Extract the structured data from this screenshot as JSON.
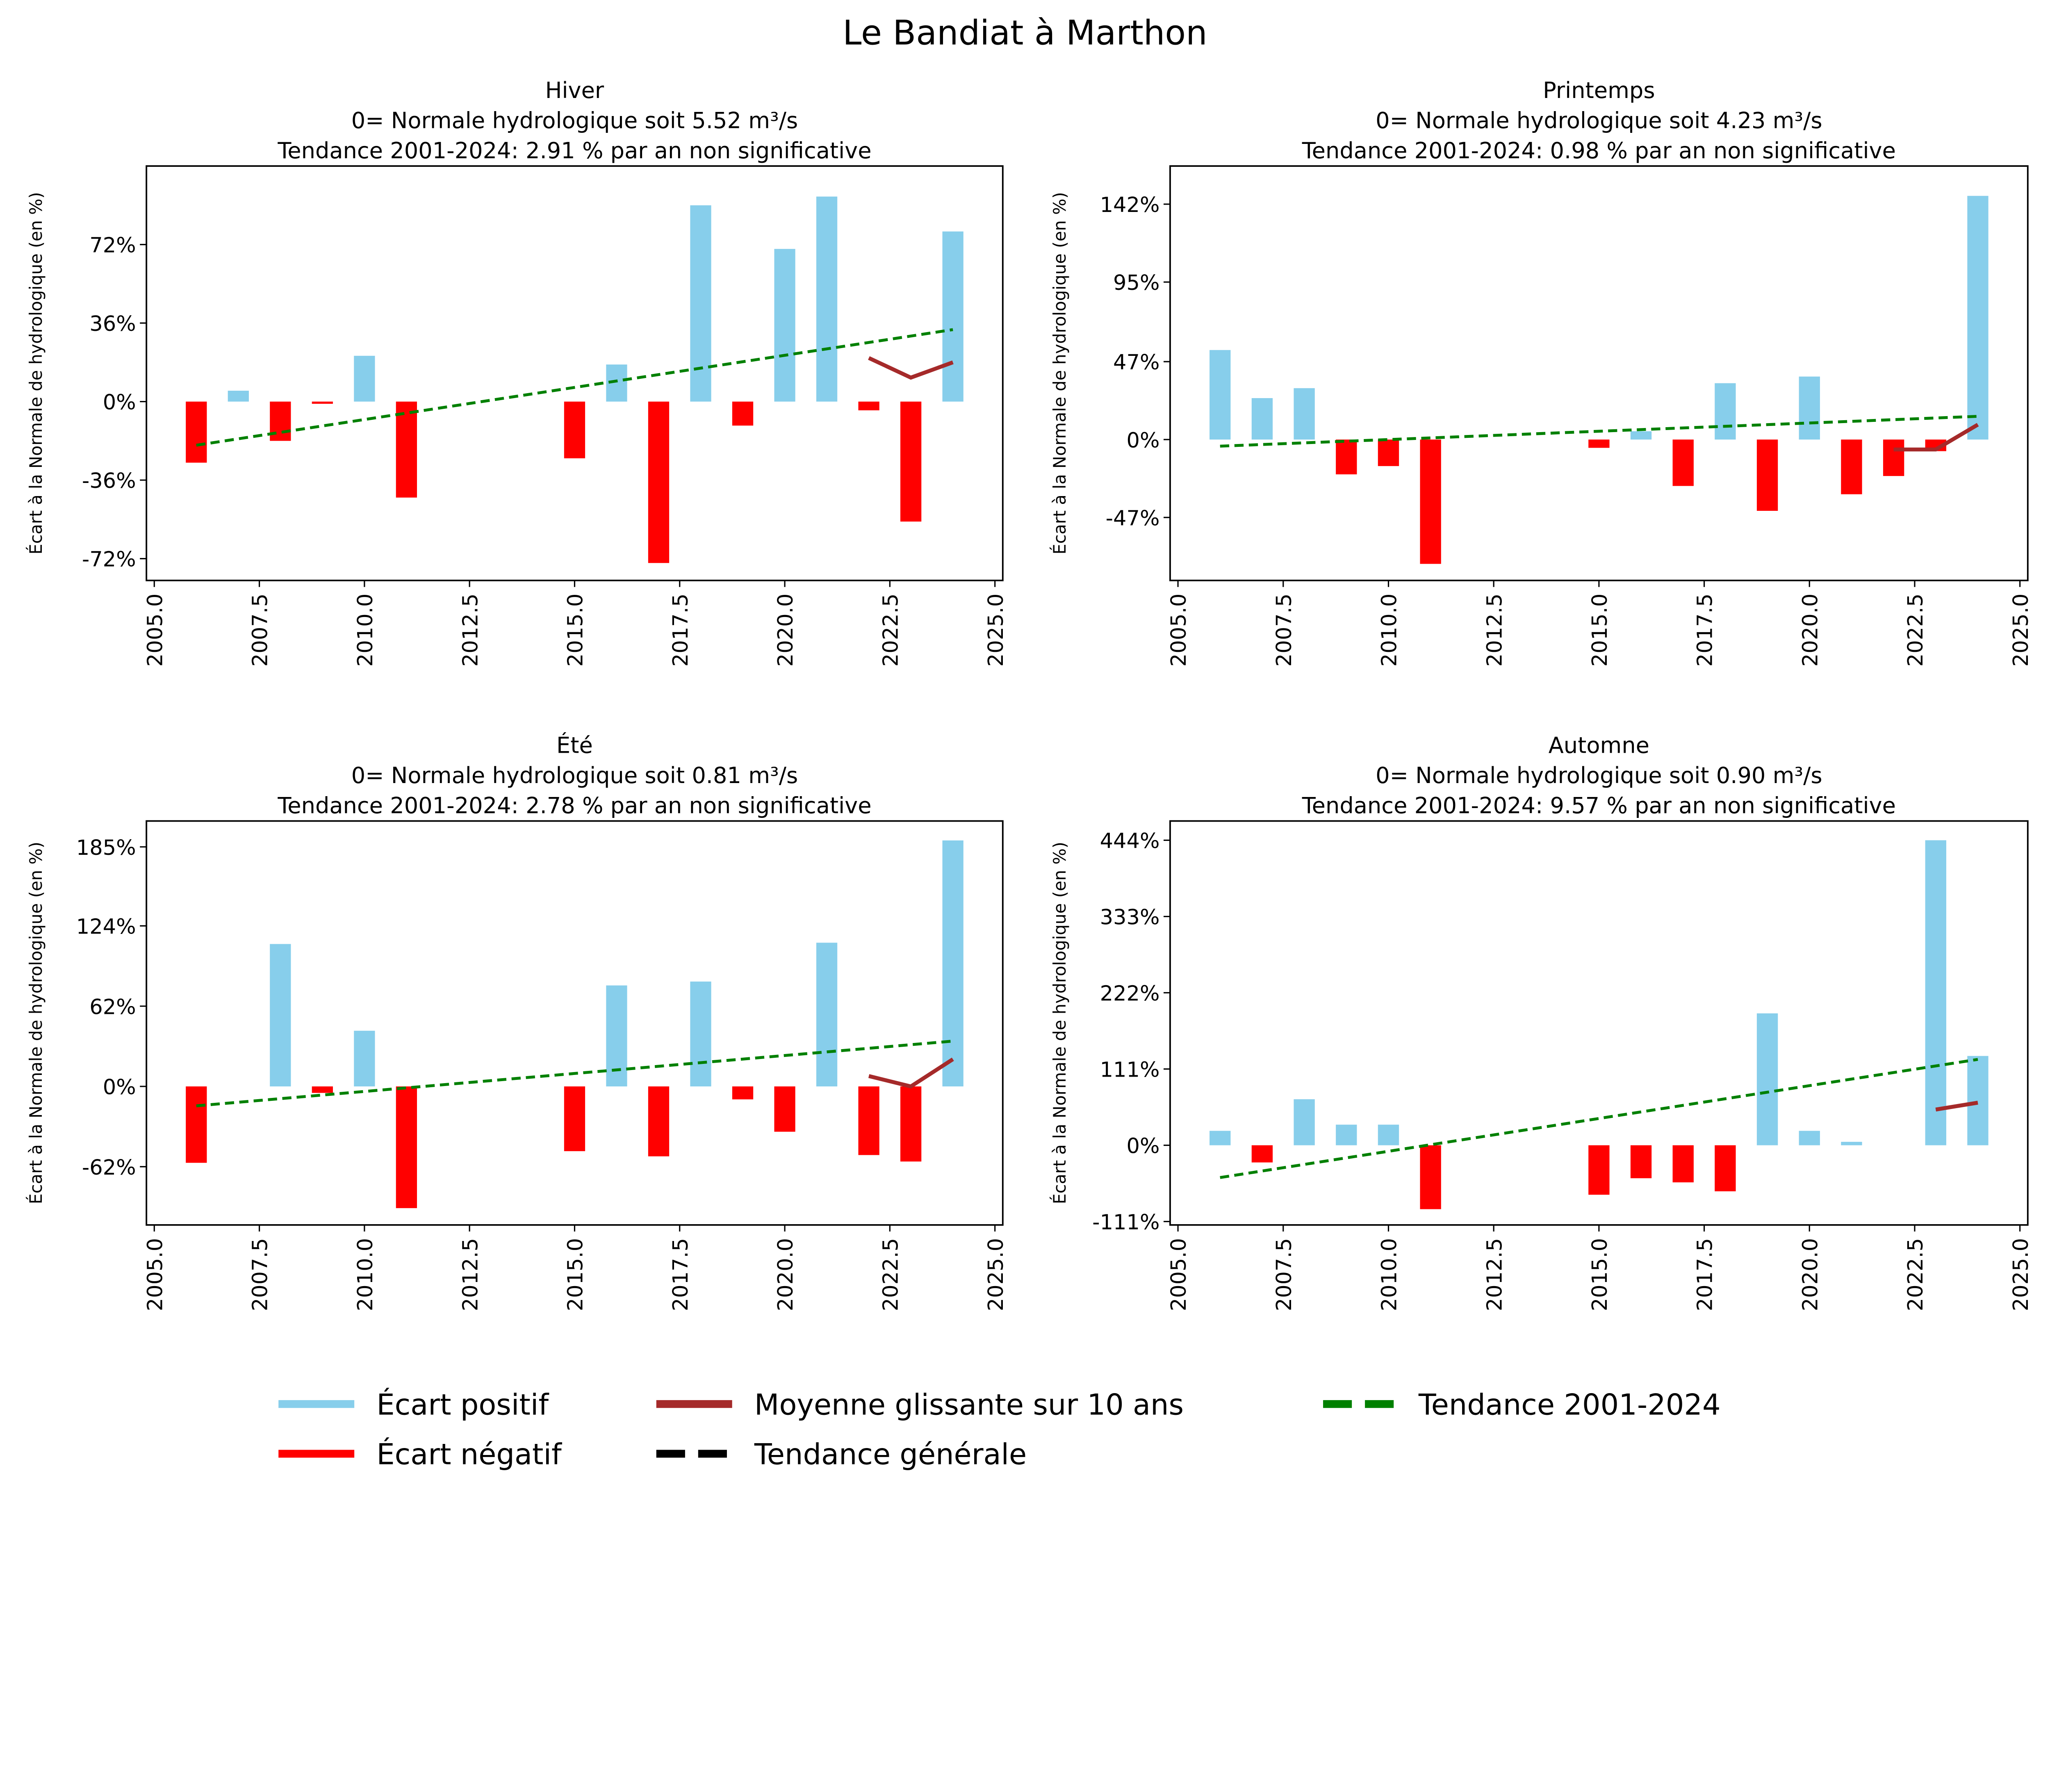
{
  "title": "Le Bandiat à Marthon",
  "ylabel": "Écart à la Normale de hydrologique (en %)",
  "colors": {
    "positive": "#87CEEB",
    "negative": "#FF0000",
    "moving_avg": "#A52A2A",
    "trend": "#008000",
    "general": "#000000"
  },
  "legend": [
    "Écart positif",
    "Écart négatif",
    "Moyenne glissante sur 10 ans",
    "Tendance générale",
    "Tendance 2001-2024"
  ],
  "chart_data": [
    {
      "type": "bar",
      "title": "Hiver",
      "subtitle1": "0= Normale hydrologique soit 5.52 m³/s",
      "subtitle2": "Tendance 2001-2024: 2.91 % par an non significative",
      "xlim": [
        2005,
        2025
      ],
      "ylim": [
        -82,
        108
      ],
      "yticks": [
        -72,
        -36,
        0,
        36,
        72
      ],
      "ytick_labels": [
        "-72%",
        "-36%",
        "0%",
        "36%",
        "72%"
      ],
      "xticks": [
        "2005.0",
        "2007.5",
        "2010.0",
        "2012.5",
        "2015.0",
        "2017.5",
        "2020.0",
        "2022.5",
        "2025.0"
      ],
      "x": [
        2006,
        2007,
        2008,
        2009,
        2010,
        2011,
        2015,
        2016,
        2017,
        2018,
        2019,
        2020,
        2021,
        2022,
        2023,
        2024
      ],
      "values": [
        -28,
        5,
        -18,
        -1,
        21,
        -44,
        -26,
        17,
        -74,
        90,
        -11,
        70,
        94,
        -4,
        -55,
        78
      ],
      "moving_avg": {
        "x": [
          2022,
          2023,
          2024
        ],
        "y": [
          20,
          11,
          18
        ]
      },
      "trend": {
        "x": [
          2006,
          2024
        ],
        "y": [
          -20,
          33
        ]
      }
    },
    {
      "type": "bar",
      "title": "Printemps",
      "subtitle1": "0= Normale hydrologique soit 4.23 m³/s",
      "subtitle2": "Tendance 2001-2024: 0.98 % par an non significative",
      "xlim": [
        2005,
        2025
      ],
      "ylim": [
        -85,
        165
      ],
      "yticks": [
        -47,
        0,
        47,
        95,
        142
      ],
      "ytick_labels": [
        "-47%",
        "0%",
        "47%",
        "95%",
        "142%"
      ],
      "xticks": [
        "2005.0",
        "2007.5",
        "2010.0",
        "2012.5",
        "2015.0",
        "2017.5",
        "2020.0",
        "2022.5",
        "2025.0"
      ],
      "x": [
        2006,
        2007,
        2008,
        2009,
        2010,
        2011,
        2015,
        2016,
        2017,
        2018,
        2019,
        2020,
        2021,
        2022,
        2023,
        2024
      ],
      "values": [
        54,
        25,
        31,
        -21,
        -16,
        -75,
        -5,
        5,
        -28,
        34,
        -43,
        38,
        -33,
        -22,
        -7,
        147
      ],
      "moving_avg": {
        "x": [
          2022,
          2023,
          2024
        ],
        "y": [
          -6,
          -6,
          9
        ]
      },
      "trend": {
        "x": [
          2006,
          2024
        ],
        "y": [
          -4,
          14
        ]
      }
    },
    {
      "type": "bar",
      "title": "Été",
      "subtitle1": "0= Normale hydrologique soit 0.81 m³/s",
      "subtitle2": "Tendance 2001-2024: 2.78 % par an non significative",
      "xlim": [
        2005,
        2025
      ],
      "ylim": [
        -107,
        205
      ],
      "yticks": [
        -62,
        0,
        62,
        124,
        185
      ],
      "ytick_labels": [
        "-62%",
        "0%",
        "62%",
        "124%",
        "185%"
      ],
      "xticks": [
        "2005.0",
        "2007.5",
        "2010.0",
        "2012.5",
        "2015.0",
        "2017.5",
        "2020.0",
        "2022.5",
        "2025.0"
      ],
      "x": [
        2006,
        2008,
        2009,
        2010,
        2011,
        2015,
        2016,
        2017,
        2018,
        2019,
        2020,
        2021,
        2022,
        2023,
        2024
      ],
      "values": [
        -59,
        110,
        -5,
        43,
        -94,
        -50,
        78,
        -54,
        81,
        -10,
        -35,
        111,
        -53,
        -58,
        190
      ],
      "moving_avg": {
        "x": [
          2022,
          2023,
          2024
        ],
        "y": [
          8,
          0,
          21
        ]
      },
      "trend": {
        "x": [
          2006,
          2024
        ],
        "y": [
          -15,
          35
        ]
      }
    },
    {
      "type": "bar",
      "title": "Automne",
      "subtitle1": "0= Normale hydrologique soit 0.90 m³/s",
      "subtitle2": "Tendance 2001-2024: 9.57 % par an non significative",
      "xlim": [
        2005,
        2025
      ],
      "ylim": [
        -116,
        472
      ],
      "yticks": [
        -111,
        0,
        111,
        222,
        333,
        444
      ],
      "ytick_labels": [
        "-111%",
        "0%",
        "111%",
        "222%",
        "333%",
        "444%"
      ],
      "xticks": [
        "2005.0",
        "2007.5",
        "2010.0",
        "2012.5",
        "2015.0",
        "2017.5",
        "2020.0",
        "2022.5",
        "2025.0"
      ],
      "x": [
        2006,
        2007,
        2008,
        2009,
        2010,
        2011,
        2015,
        2016,
        2017,
        2018,
        2019,
        2020,
        2021,
        2023,
        2024
      ],
      "values": [
        21,
        -25,
        67,
        30,
        30,
        -93,
        -72,
        -48,
        -54,
        -67,
        192,
        21,
        5,
        444,
        130
      ],
      "moving_avg": {
        "x": [
          2023,
          2024
        ],
        "y": [
          52,
          62
        ]
      },
      "trend": {
        "x": [
          2006,
          2024
        ],
        "y": [
          -47,
          125
        ]
      }
    }
  ]
}
